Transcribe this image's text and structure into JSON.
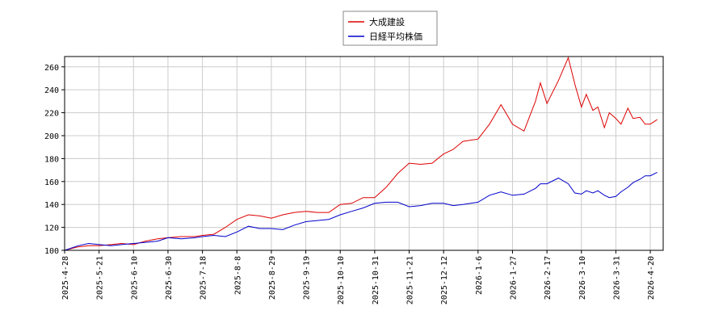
{
  "chart_data": {
    "type": "line",
    "x": [
      "2025-04-28",
      "2025-05-07",
      "2025-05-14",
      "2025-05-21",
      "2025-05-28",
      "2025-06-03",
      "2025-06-10",
      "2025-06-17",
      "2025-06-24",
      "2025-06-30",
      "2025-07-07",
      "2025-07-14",
      "2025-07-18",
      "2025-07-25",
      "2025-08-01",
      "2025-08-08",
      "2025-08-15",
      "2025-08-22",
      "2025-08-29",
      "2025-09-05",
      "2025-09-12",
      "2025-09-19",
      "2025-09-26",
      "2025-10-03",
      "2025-10-10",
      "2025-10-17",
      "2025-10-24",
      "2025-10-31",
      "2025-11-07",
      "2025-11-14",
      "2025-11-21",
      "2025-11-28",
      "2025-12-05",
      "2025-12-12",
      "2025-12-19",
      "2025-12-26",
      "2026-01-06",
      "2026-01-13",
      "2026-01-20",
      "2026-01-27",
      "2026-02-03",
      "2026-02-10",
      "2026-02-13",
      "2026-02-17",
      "2026-02-24",
      "2026-03-02",
      "2026-03-06",
      "2026-03-10",
      "2026-03-13",
      "2026-03-17",
      "2026-03-20",
      "2026-03-24",
      "2026-03-27",
      "2026-03-31",
      "2026-04-03",
      "2026-04-07",
      "2026-04-10",
      "2026-04-14",
      "2026-04-17",
      "2026-04-20",
      "2026-04-24"
    ],
    "series": [
      {
        "name": "大成建設",
        "color": "#dd0000",
        "values": [
          100,
          103,
          104,
          104,
          105,
          106,
          105,
          108,
          110,
          111,
          112,
          112,
          113,
          114,
          120,
          127,
          131,
          130,
          128,
          131,
          133,
          134,
          133,
          133,
          140,
          141,
          146,
          146,
          155,
          167,
          176,
          175,
          176,
          184,
          188,
          195,
          197,
          210,
          227,
          210,
          204,
          230,
          246,
          228,
          248,
          268,
          245,
          225,
          236,
          222,
          225,
          207,
          220,
          215,
          210,
          224,
          215,
          216,
          210,
          210,
          214
        ]
      },
      {
        "name": "日経平均株価",
        "color": "#0000cc",
        "values": [
          100,
          104,
          106,
          105,
          104,
          105,
          106,
          107,
          108,
          111,
          110,
          111,
          112,
          113,
          112,
          116,
          121,
          119,
          119,
          118,
          122,
          125,
          126,
          127,
          131,
          134,
          137,
          141,
          142,
          142,
          138,
          139,
          141,
          141,
          139,
          140,
          142,
          148,
          151,
          148,
          149,
          154,
          158,
          158,
          163,
          158,
          150,
          149,
          152,
          150,
          152,
          148,
          146,
          147,
          151,
          155,
          159,
          162,
          165,
          165,
          168
        ]
      }
    ],
    "ylim": [
      100,
      269
    ],
    "yticks": [
      100,
      120,
      140,
      160,
      180,
      200,
      220,
      240,
      260
    ],
    "xlim": [
      "2025-04-28",
      "2026-04-28"
    ],
    "xticks": [
      {
        "value": "2025-04-28",
        "label": "2025-4-28"
      },
      {
        "value": "2025-05-21",
        "label": "2025-5-21"
      },
      {
        "value": "2025-06-10",
        "label": "2025-6-10"
      },
      {
        "value": "2025-06-30",
        "label": "2025-6-30"
      },
      {
        "value": "2025-07-18",
        "label": "2025-7-18"
      },
      {
        "value": "2025-08-08",
        "label": "2025-8-8"
      },
      {
        "value": "2025-08-29",
        "label": "2025-8-29"
      },
      {
        "value": "2025-09-19",
        "label": "2025-9-19"
      },
      {
        "value": "2025-10-10",
        "label": "2025-10-10"
      },
      {
        "value": "2025-10-31",
        "label": "2025-10-31"
      },
      {
        "value": "2025-11-21",
        "label": "2025-11-21"
      },
      {
        "value": "2025-12-12",
        "label": "2025-12-12"
      },
      {
        "value": "2026-01-06",
        "label": "2026-1-6"
      },
      {
        "value": "2026-01-27",
        "label": "2026-1-27"
      },
      {
        "value": "2026-02-17",
        "label": "2026-2-17"
      },
      {
        "value": "2026-03-10",
        "label": "2026-3-10"
      },
      {
        "value": "2026-03-31",
        "label": "2026-3-31"
      },
      {
        "value": "2026-04-20",
        "label": "2026-4-20"
      }
    ],
    "grid": true,
    "legend": "top"
  }
}
